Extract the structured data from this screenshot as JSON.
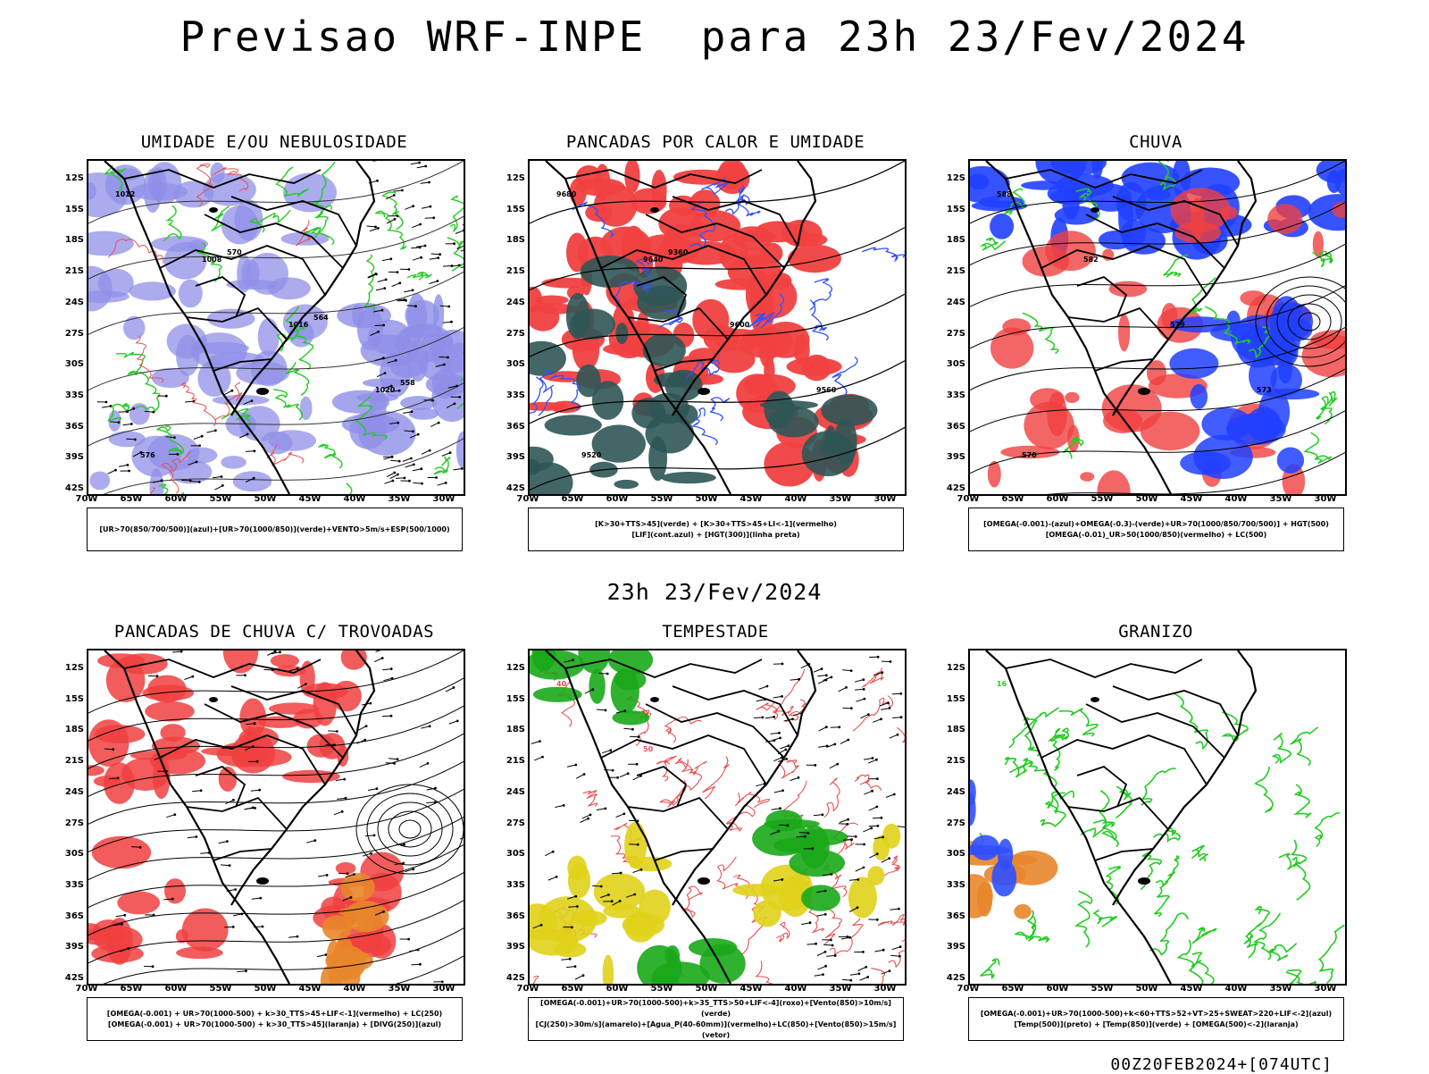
{
  "main_title": "Previsao WRF-INPE  para 23h 23/Fev/2024",
  "mid_title": "23h 23/Fev/2024",
  "footer": "00Z20FEB2024+[074UTC]",
  "lat_ticks": [
    "12S",
    "15S",
    "18S",
    "21S",
    "24S",
    "27S",
    "30S",
    "33S",
    "36S",
    "39S",
    "42S"
  ],
  "lon_ticks": [
    "70W",
    "65W",
    "60W",
    "55W",
    "50W",
    "45W",
    "40W",
    "35W",
    "30W"
  ],
  "panels": [
    {
      "title": "UMIDADE E/OU NEBULOSIDADE",
      "legend": [
        "[UR>70(850/700/500)](azul)+[UR>70(1000/850)](verde)+VENTO>5m/s+ESP(500/1000)"
      ],
      "contour_labels": [
        "1012",
        "1008",
        "1016",
        "1020",
        "576",
        "570",
        "564",
        "558"
      ]
    },
    {
      "title": "PANCADAS POR CALOR E UMIDADE",
      "legend": [
        "[K>30+TTS>45](verde) + [K>30+TTS>45+LI<-1](vermelho)",
        "[LIF](cont.azul) + [HGT(300)](linha preta)"
      ],
      "contour_labels": [
        "9680",
        "9640",
        "9600",
        "9560",
        "9520",
        "9360"
      ]
    },
    {
      "title": "CHUVA",
      "legend": [
        "[OMEGA(-0.001)-(azul)+OMEGA(-0.3)-(verde)+UR>70(1000/850/700/500)] + HGT(500)",
        "[OMEGA(-0.01)_UR>50(1000/850)(vermelho) + LC(500)"
      ],
      "contour_labels": [
        "588",
        "582",
        "579",
        "573",
        "570"
      ]
    },
    {
      "title": "PANCADAS DE CHUVA C/ TROVOADAS",
      "legend": [
        "[OMEGA(-0.001) + UR>70(1000-500) + k>30_TTS>45+LIF<-1](vermelho) + LC(250)",
        "[OMEGA(-0.001) + UR>70(1000-500) + k>30_TTS>45](laranja) + [DIVG(250)](azul)"
      ],
      "contour_labels": []
    },
    {
      "title": "TEMPESTADE",
      "legend": [
        "[OMEGA(-0.001)+UR>70(1000-500)+k>35_TTS>50+LIF<-4](roxo)+[Vento(850)>10m/s](verde)",
        "[CJ(250)>30m/s](amarelo)+[Agua_P(40-60mm)](vermelho)+LC(850)+[Vento(850)>15m/s](vetor)"
      ],
      "contour_labels": [
        "40",
        "50"
      ]
    },
    {
      "title": "GRANIZO",
      "legend": [
        "[OMEGA(-0.001)+UR>70(1000-500)+k<60+TTS>52+VT>25+SWEAT>220+LIF<-2](azul)",
        "[Temp(500)](preto) + [Temp(850)](verde) + [OMEGA(500)<-2](laranja)"
      ],
      "contour_labels": [
        "16"
      ]
    }
  ],
  "colors": {
    "blue_fill": "#8f8fe8",
    "red_fill": "#f04040",
    "green_line": "#22cc22",
    "dark_teal": "#2f5555",
    "yellow": "#e0d21a",
    "orange": "#e8862a",
    "line_red": "#e85050",
    "blue_line": "#3050ff"
  }
}
